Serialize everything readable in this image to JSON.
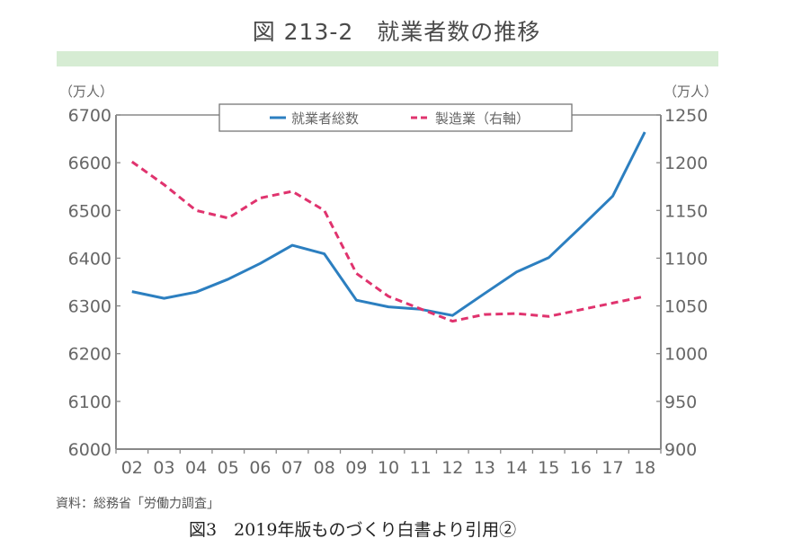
{
  "figure_title": "図 213-2　就業者数の推移",
  "source_note": "資料：総務省「労働力調査」",
  "caption": "図3　2019年版ものづくり白書より引用②",
  "colors": {
    "employed_total": "#2c7fc0",
    "manufacturing": "#e0336e",
    "band": "#d6ecd3",
    "axis": "#888888"
  },
  "chart_data": {
    "type": "line",
    "title": "図 213-2　就業者数の推移",
    "xlabel": "",
    "ylabel_left": "（万人）",
    "ylabel_right": "（万人）",
    "categories": [
      "02",
      "03",
      "04",
      "05",
      "06",
      "07",
      "08",
      "09",
      "10",
      "11",
      "12",
      "13",
      "14",
      "15",
      "16",
      "17",
      "18"
    ],
    "ylim_left": [
      6000,
      6700
    ],
    "ylim_right": [
      900,
      1250
    ],
    "yticks_left": [
      "6000",
      "6100",
      "6200",
      "6300",
      "6400",
      "6500",
      "6600",
      "6700"
    ],
    "yticks_right": [
      "900",
      "950",
      "1000",
      "1050",
      "1100",
      "1150",
      "1200",
      "1250"
    ],
    "legend_position": "top-center",
    "grid": false,
    "series": [
      {
        "name": "就業者総数",
        "axis": "left",
        "style": "solid",
        "values": [
          6330,
          6316,
          6329,
          6356,
          6389,
          6427,
          6409,
          6312,
          6298,
          6293,
          6280,
          6326,
          6371,
          6401,
          6465,
          6530,
          6664
        ]
      },
      {
        "name": "製造業（右軸）",
        "axis": "right",
        "style": "dashed",
        "values": [
          1201,
          1177,
          1150,
          1142,
          1163,
          1170,
          1150,
          1084,
          1060,
          1047,
          1034,
          1041,
          1042,
          1039,
          1046,
          1053,
          1060
        ]
      }
    ]
  }
}
